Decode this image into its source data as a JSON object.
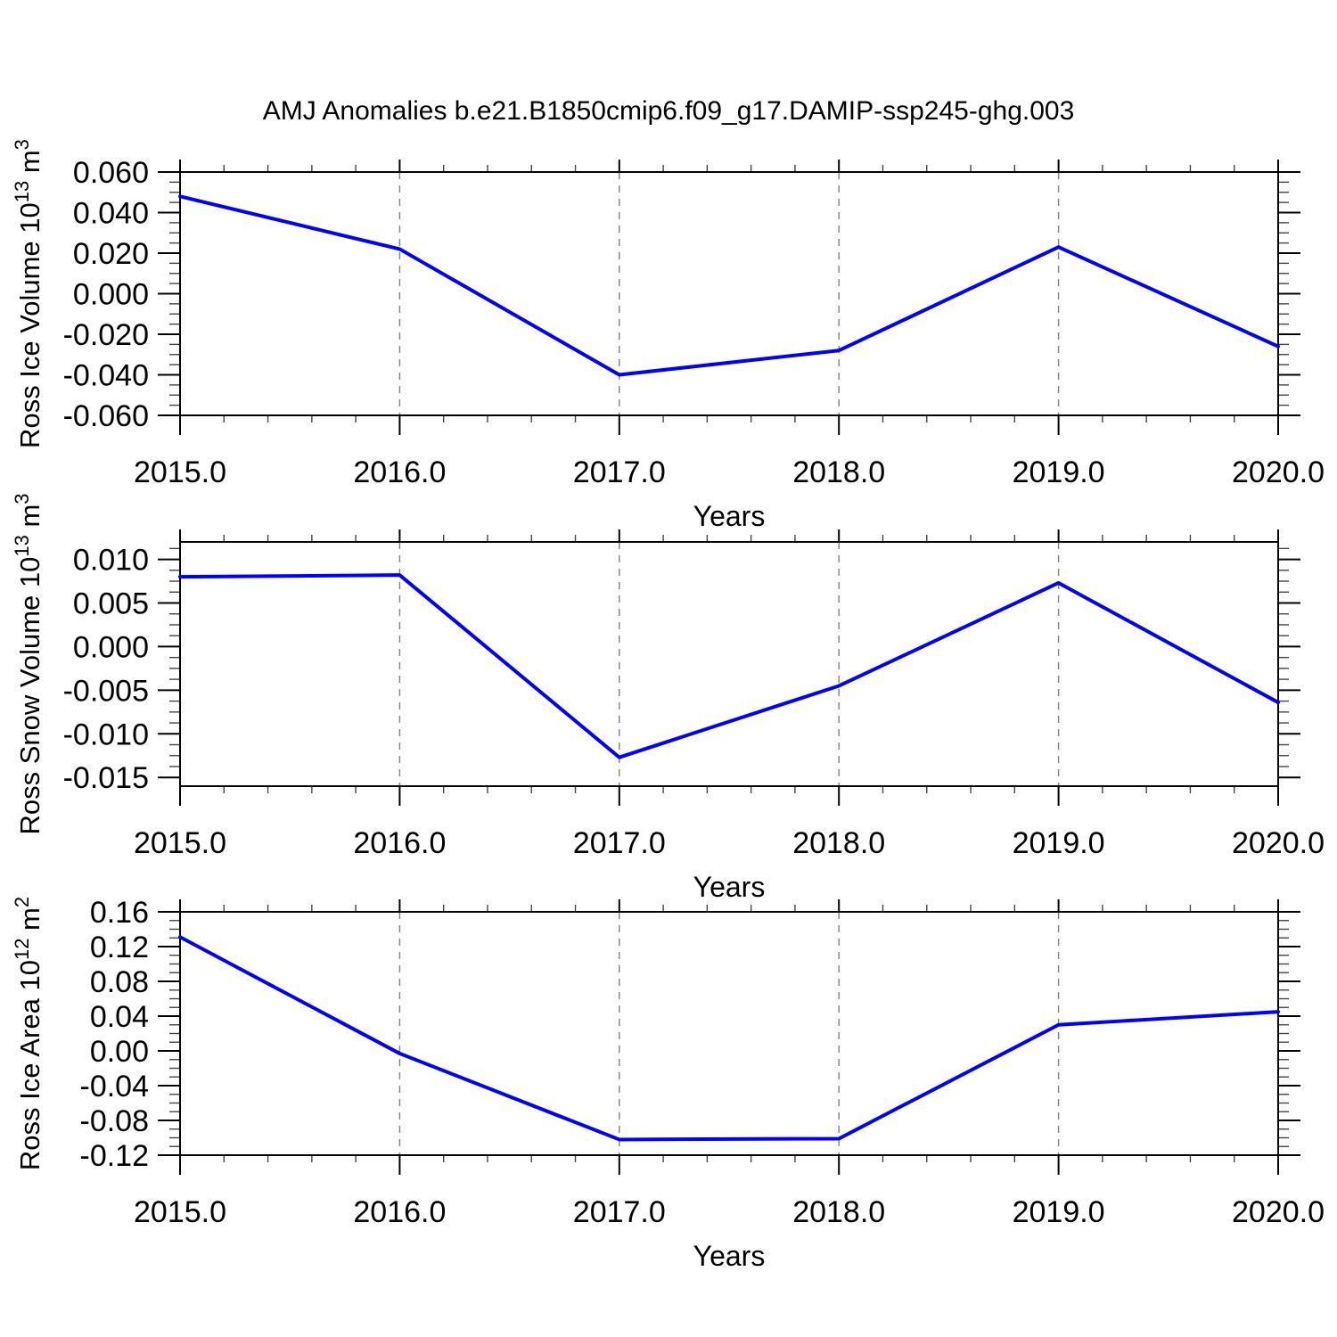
{
  "title": "AMJ Anomalies b.e21.B1850cmip6.f09_g17.DAMIP-ssp245-ghg.003",
  "style": {
    "line_color": "#0000ff",
    "grid_color": "#888888",
    "frame_color": "#000000",
    "text_color": "#000000",
    "background": "#ffffff"
  },
  "chart_data": [
    {
      "type": "line",
      "ylabel": "Ross Ice Volume 10¹³ m³",
      "ylabel_parts": [
        {
          "t": "Ross Ice Volume 10"
        },
        {
          "t": "13",
          "sup": true
        },
        {
          "t": " m"
        },
        {
          "t": "3",
          "sup": true
        }
      ],
      "xlabel": "Years",
      "x": [
        2015.0,
        2016.0,
        2017.0,
        2018.0,
        2019.0,
        2020.0
      ],
      "values": [
        0.048,
        0.022,
        -0.04,
        -0.028,
        0.023,
        -0.026
      ],
      "xlim": [
        2015.0,
        2020.0
      ],
      "ylim": [
        -0.06,
        0.06
      ],
      "xticks": [
        2015.0,
        2016.0,
        2017.0,
        2018.0,
        2019.0,
        2020.0
      ],
      "xtick_labels": [
        "2015.0",
        "2016.0",
        "2017.0",
        "2018.0",
        "2019.0",
        "2020.0"
      ],
      "yticks": [
        0.06,
        0.04,
        0.02,
        0.0,
        -0.02,
        -0.04,
        -0.06
      ],
      "ytick_labels": [
        "0.060",
        "0.040",
        "0.020",
        "0.000",
        "-0.020",
        "-0.040",
        "-0.060"
      ],
      "x_minor_step": 0.2,
      "y_minor_step": 0.005,
      "grid_x": [
        2016.0,
        2017.0,
        2018.0,
        2019.0
      ],
      "grid": "vertical-dashed",
      "legend": "none"
    },
    {
      "type": "line",
      "ylabel": "Ross Snow Volume 10¹³ m³",
      "ylabel_parts": [
        {
          "t": "Ross Snow Volume 10"
        },
        {
          "t": "13",
          "sup": true
        },
        {
          "t": " m"
        },
        {
          "t": "3",
          "sup": true
        }
      ],
      "xlabel": "Years",
      "x": [
        2015.0,
        2016.0,
        2017.0,
        2018.0,
        2019.0,
        2020.0
      ],
      "values": [
        0.008,
        0.0082,
        -0.0127,
        -0.0045,
        0.0073,
        -0.0064
      ],
      "xlim": [
        2015.0,
        2020.0
      ],
      "ylim": [
        -0.016,
        0.012
      ],
      "xticks": [
        2015.0,
        2016.0,
        2017.0,
        2018.0,
        2019.0,
        2020.0
      ],
      "xtick_labels": [
        "2015.0",
        "2016.0",
        "2017.0",
        "2018.0",
        "2019.0",
        "2020.0"
      ],
      "yticks": [
        0.01,
        0.005,
        0.0,
        -0.005,
        -0.01,
        -0.015
      ],
      "ytick_labels": [
        "0.010",
        "0.005",
        "0.000",
        "-0.005",
        "-0.010",
        "-0.015"
      ],
      "x_minor_step": 0.2,
      "y_minor_step": 0.00125,
      "grid_x": [
        2016.0,
        2017.0,
        2018.0,
        2019.0
      ],
      "grid": "vertical-dashed",
      "legend": "none"
    },
    {
      "type": "line",
      "ylabel": "Ross Ice Area 10¹² m²",
      "ylabel_parts": [
        {
          "t": "Ross Ice Area 10"
        },
        {
          "t": "12",
          "sup": true
        },
        {
          "t": " m"
        },
        {
          "t": "2",
          "sup": true
        }
      ],
      "xlabel": "Years",
      "x": [
        2015.0,
        2016.0,
        2017.0,
        2018.0,
        2019.0,
        2020.0
      ],
      "values": [
        0.131,
        -0.003,
        -0.102,
        -0.101,
        0.03,
        0.045
      ],
      "xlim": [
        2015.0,
        2020.0
      ],
      "ylim": [
        -0.12,
        0.16
      ],
      "xticks": [
        2015.0,
        2016.0,
        2017.0,
        2018.0,
        2019.0,
        2020.0
      ],
      "xtick_labels": [
        "2015.0",
        "2016.0",
        "2017.0",
        "2018.0",
        "2019.0",
        "2020.0"
      ],
      "yticks": [
        0.16,
        0.12,
        0.08,
        0.04,
        0.0,
        -0.04,
        -0.08,
        -0.12
      ],
      "ytick_labels": [
        "0.16",
        "0.12",
        "0.08",
        "0.04",
        "0.00",
        "-0.04",
        "-0.08",
        "-0.12"
      ],
      "x_minor_step": 0.2,
      "y_minor_step": 0.01,
      "grid_x": [
        2016.0,
        2017.0,
        2018.0,
        2019.0
      ],
      "grid": "vertical-dashed",
      "legend": "none"
    }
  ]
}
